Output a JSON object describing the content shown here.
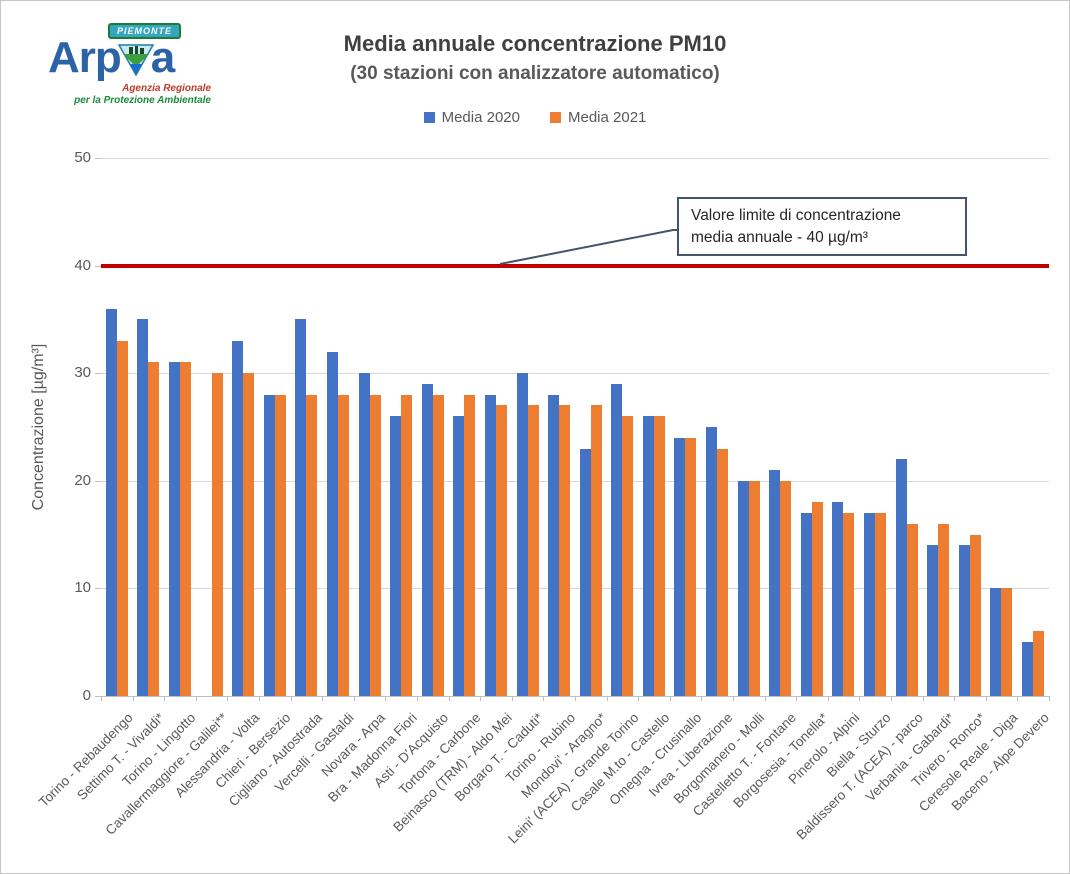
{
  "logo": {
    "region": "PIEMONTE",
    "name_part1": "Arp",
    "name_part2": "a",
    "sub1": "Agenzia Regionale",
    "sub2": "per la Protezione Ambientale"
  },
  "annotation": {
    "line1": "Valore limite di concentrazione",
    "line2": "media annuale - 40 µg/m³"
  },
  "chart_data": {
    "type": "bar",
    "title": "Media annuale concentrazione PM10",
    "subtitle": "(30 stazioni con analizzatore automatico)",
    "ylabel": "Concentrazione [µg/m³]",
    "xlabel": "",
    "ylim": [
      0,
      50
    ],
    "yticks": [
      0,
      10,
      20,
      30,
      40,
      50
    ],
    "grid": true,
    "legend_position": "top",
    "categories": [
      "Torino - Rebaudengo",
      "Settimo T. - Vivaldi*",
      "Torino - Lingotto",
      "Cavallermaggiore - Galilei**",
      "Alessandria - Volta",
      "Chieri - Bersezio",
      "Cigliano - Autostrada",
      "Vercelli - Gastaldi",
      "Novara - Arpa",
      "Bra - Madonna Fiori",
      "Asti - D'Acquisto",
      "Tortona - Carbone",
      "Beinasco (TRM) - Aldo Mei",
      "Borgaro T. - Caduti*",
      "Torino - Rubino",
      "Mondovi' - Aragno*",
      "Leini' (ACEA) - Grande Torino",
      "Casale M.to - Castello",
      "Omegna - Crusinallo",
      "Ivrea - Liberazione",
      "Borgomanero - Molli",
      "Castelletto T. - Fontane",
      "Borgosesia - Tonella*",
      "Pinerolo - Alpini",
      "Biella - Sturzo",
      "Baldissero T. (ACEA) - parco",
      "Verbania - Gabardi*",
      "Trivero - Ronco*",
      "Ceresole Reale - Diga",
      "Baceno - Alpe Devero"
    ],
    "series": [
      {
        "name": "Media 2020",
        "color": "#4472C4",
        "values": [
          36,
          35,
          31,
          null,
          33,
          28,
          35,
          32,
          30,
          26,
          29,
          26,
          28,
          30,
          28,
          23,
          29,
          26,
          24,
          25,
          20,
          21,
          17,
          18,
          17,
          22,
          14,
          14,
          10,
          5
        ]
      },
      {
        "name": "Media 2021",
        "color": "#ED7D31",
        "values": [
          33,
          31,
          31,
          30,
          30,
          28,
          28,
          28,
          28,
          28,
          28,
          28,
          27,
          27,
          27,
          27,
          26,
          26,
          24,
          23,
          20,
          20,
          18,
          17,
          17,
          16,
          16,
          15,
          10,
          6
        ]
      }
    ],
    "limit_line": {
      "value": 40,
      "color": "#C00000",
      "label": "Valore limite di concentrazione media annuale - 40 µg/m³"
    }
  }
}
